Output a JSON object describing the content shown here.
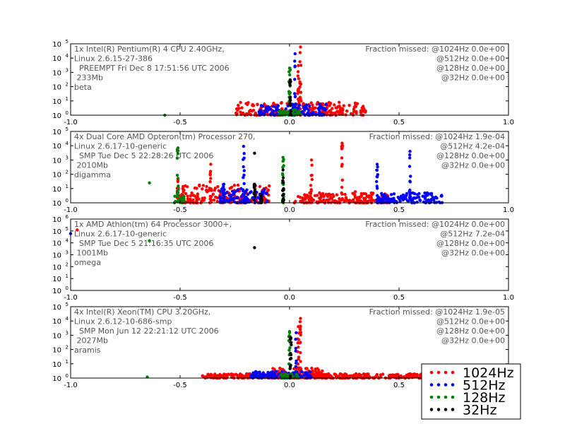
{
  "chart_data": {
    "type": "scatter",
    "xlim": [
      -1.0,
      1.0
    ],
    "x_ticks": [
      "-1.0",
      "-0.5",
      "0.0",
      "0.5",
      "1.0"
    ],
    "scale": "log-y",
    "colors": {
      "1024Hz": "#ff0000",
      "512Hz": "#0000ff",
      "128Hz": "#008000",
      "32Hz": "#000000"
    },
    "legend": {
      "placement": "bottom-right",
      "entries": [
        "1024Hz",
        "512Hz",
        "128Hz",
        "32Hz"
      ]
    },
    "panels": [
      {
        "ylim": [
          1,
          100000
        ],
        "y_ticks": [
          {
            "base": "10",
            "exp": "0"
          },
          {
            "base": "10",
            "exp": "1"
          },
          {
            "base": "10",
            "exp": "2"
          },
          {
            "base": "10",
            "exp": "3"
          },
          {
            "base": "10",
            "exp": "4"
          },
          {
            "base": "10",
            "exp": "5"
          }
        ],
        "info": [
          "1x Intel(R) Pentium(R) 4 CPU 2.40GHz,",
          "Linux 2.6.15-27-386",
          "  PREEMPT Fri Dec 8 17:51:56 UTC 2006",
          " 233Mb",
          "beta"
        ],
        "fraction": [
          "Fraction missed: @1024Hz 0.0e+00",
          "@512Hz 0.0e+00",
          "@128Hz 0.0e+00",
          "@32Hz 0.0e+00"
        ],
        "series": [
          {
            "name": "1024Hz",
            "clusters": [
              {
                "type": "band",
                "x0": -0.25,
                "x1": 0.35,
                "y0": 1,
                "y1": 8
              },
              {
                "type": "spike",
                "x": 0.05,
                "ymax": 60000
              },
              {
                "type": "spike",
                "x": 0.04,
                "ymax": 3000
              }
            ]
          },
          {
            "name": "512Hz",
            "clusters": [
              {
                "type": "band",
                "x0": -0.14,
                "x1": 0.17,
                "y0": 1,
                "y1": 6
              },
              {
                "type": "spike",
                "x": 0.025,
                "ymax": 20000
              }
            ]
          },
          {
            "name": "128Hz",
            "clusters": [
              {
                "type": "band",
                "x0": -0.05,
                "x1": 0.05,
                "y0": 1,
                "y1": 2.5
              },
              {
                "type": "spike",
                "x": 0.0,
                "ymax": 2000
              },
              {
                "type": "point",
                "x": -0.57,
                "y": 1
              }
            ]
          },
          {
            "name": "32Hz",
            "clusters": [
              {
                "type": "spike",
                "x": 0.003,
                "ymax": 300
              }
            ]
          }
        ]
      },
      {
        "ylim": [
          1,
          100000
        ],
        "y_ticks": [
          {
            "base": "10",
            "exp": "0"
          },
          {
            "base": "10",
            "exp": "1"
          },
          {
            "base": "10",
            "exp": "2"
          },
          {
            "base": "10",
            "exp": "3"
          },
          {
            "base": "10",
            "exp": "4"
          },
          {
            "base": "10",
            "exp": "5"
          }
        ],
        "info": [
          "4x Dual Core AMD Opteron(tm) Processor 270,",
          "Linux 2.6.17-10-generic",
          "  SMP Tue Dec 5 22:28:26 UTC 2006",
          " 2010Mb",
          "digamma"
        ],
        "fraction": [
          "Fraction missed: @1024Hz 1.9e-04",
          "@512Hz 4.2e-04",
          "@128Hz 0.0e+00",
          "@32Hz 0.0e+00"
        ],
        "series": [
          {
            "name": "1024Hz",
            "clusters": [
              {
                "type": "band",
                "x0": -0.5,
                "x1": -0.08,
                "y0": 1,
                "y1": 20
              },
              {
                "type": "band",
                "x0": 0.02,
                "x1": 0.45,
                "y0": 1,
                "y1": 5
              },
              {
                "type": "spike",
                "x": -0.36,
                "ymax": 500
              },
              {
                "type": "spike",
                "x": 0.1,
                "ymax": 1000
              },
              {
                "type": "spike",
                "x": 0.24,
                "ymax": 15000
              },
              {
                "type": "spike",
                "x": -0.51,
                "ymax": 40
              },
              {
                "type": "point",
                "x": 0.3,
                "y": 6
              }
            ]
          },
          {
            "name": "512Hz",
            "clusters": [
              {
                "type": "band",
                "x0": -0.32,
                "x1": -0.1,
                "y0": 1,
                "y1": 10
              },
              {
                "type": "band",
                "x0": 0.4,
                "x1": 0.7,
                "y0": 1,
                "y1": 5
              },
              {
                "type": "spike",
                "x": -0.21,
                "ymax": 9000
              },
              {
                "type": "spike",
                "x": 0.4,
                "ymax": 500
              },
              {
                "type": "spike",
                "x": 0.55,
                "ymax": 4000
              },
              {
                "type": "spike",
                "x": -0.3,
                "ymax": 20
              }
            ]
          },
          {
            "name": "128Hz",
            "clusters": [
              {
                "type": "band",
                "x0": -0.53,
                "x1": -0.48,
                "y0": 1,
                "y1": 3
              },
              {
                "type": "spike",
                "x": -0.51,
                "ymax": 7000
              },
              {
                "type": "spike",
                "x": -0.03,
                "ymax": 1500
              },
              {
                "type": "point",
                "x": -0.64,
                "y": 25
              }
            ]
          },
          {
            "name": "32Hz",
            "clusters": [
              {
                "type": "spike",
                "x": -0.03,
                "ymax": 200
              },
              {
                "type": "point",
                "x": -0.16,
                "y": 3000
              },
              {
                "type": "spike",
                "x": -0.13,
                "ymax": 4
              },
              {
                "type": "spike",
                "x": -0.16,
                "ymax": 20
              }
            ]
          }
        ]
      },
      {
        "ylim": [
          1,
          1000000
        ],
        "y_ticks": [
          {
            "base": "10",
            "exp": "0"
          },
          {
            "base": "10",
            "exp": "1"
          },
          {
            "base": "10",
            "exp": "2"
          },
          {
            "base": "10",
            "exp": "3"
          },
          {
            "base": "10",
            "exp": "4"
          },
          {
            "base": "10",
            "exp": "5"
          },
          {
            "base": "10",
            "exp": "6"
          }
        ],
        "info": [
          "1x AMD Athlon(tm) 64 Processor 3000+,",
          "Linux 2.6.17-10-generic",
          "  SMP Tue Dec 5 21:16:35 UTC 2006",
          " 1001Mb",
          "omega"
        ],
        "fraction": [
          "Fraction missed: @1024Hz 0.0e+00",
          "@512Hz 7.2e-04",
          "@128Hz 0.0e+00",
          "@32Hz 0.0e+00"
        ],
        "series": [
          {
            "name": "1024Hz",
            "clusters": [
              {
                "type": "point",
                "x": -0.97,
                "y": 120000
              }
            ]
          },
          {
            "name": "512Hz",
            "clusters": [
              {
                "type": "point",
                "x": -1.0,
                "y": 60000
              }
            ]
          },
          {
            "name": "128Hz",
            "clusters": [
              {
                "type": "point",
                "x": -0.64,
                "y": 15000
              }
            ]
          },
          {
            "name": "32Hz",
            "clusters": [
              {
                "type": "point",
                "x": -0.16,
                "y": 4000
              }
            ]
          }
        ]
      },
      {
        "ylim": [
          1,
          100000
        ],
        "y_ticks": [
          {
            "base": "10",
            "exp": "0"
          },
          {
            "base": "10",
            "exp": "1"
          },
          {
            "base": "10",
            "exp": "2"
          },
          {
            "base": "10",
            "exp": "3"
          },
          {
            "base": "10",
            "exp": "4"
          },
          {
            "base": "10",
            "exp": "5"
          }
        ],
        "info": [
          "4x Intel(R) Xeon(TM) CPU 3.20GHz,",
          "Linux 2.6.12-10-686-smp",
          "  SMP Mon Jun 12 22:21:12 UTC 2006",
          " 2027Mb",
          "aramis"
        ],
        "fraction": [
          "Fraction missed: @1024Hz 1.9e-05",
          "@512Hz 0.0e+00",
          "@128Hz 0.0e+00",
          "@32Hz 0.0e+00"
        ],
        "series": [
          {
            "name": "1024Hz",
            "clusters": [
              {
                "type": "band",
                "x0": -0.4,
                "x1": 0.7,
                "y0": 1,
                "y1": 2
              },
              {
                "type": "band",
                "x0": -0.1,
                "x1": 0.15,
                "y0": 1,
                "y1": 5
              },
              {
                "type": "spike",
                "x": 0.05,
                "ymax": 15000
              },
              {
                "type": "spike",
                "x": 0.04,
                "ymax": 4000
              }
            ]
          },
          {
            "name": "512Hz",
            "clusters": [
              {
                "type": "band",
                "x0": -0.18,
                "x1": 0.1,
                "y0": 1,
                "y1": 3
              },
              {
                "type": "spike",
                "x": 0.03,
                "ymax": 1500
              }
            ]
          },
          {
            "name": "128Hz",
            "clusters": [
              {
                "type": "band",
                "x0": -0.04,
                "x1": 0.04,
                "y0": 1,
                "y1": 2
              },
              {
                "type": "spike",
                "x": 0.0,
                "ymax": 1800
              },
              {
                "type": "point",
                "x": -0.65,
                "y": 1.2
              }
            ]
          },
          {
            "name": "32Hz",
            "clusters": [
              {
                "type": "spike",
                "x": 0.005,
                "ymax": 700
              }
            ]
          }
        ]
      }
    ]
  }
}
